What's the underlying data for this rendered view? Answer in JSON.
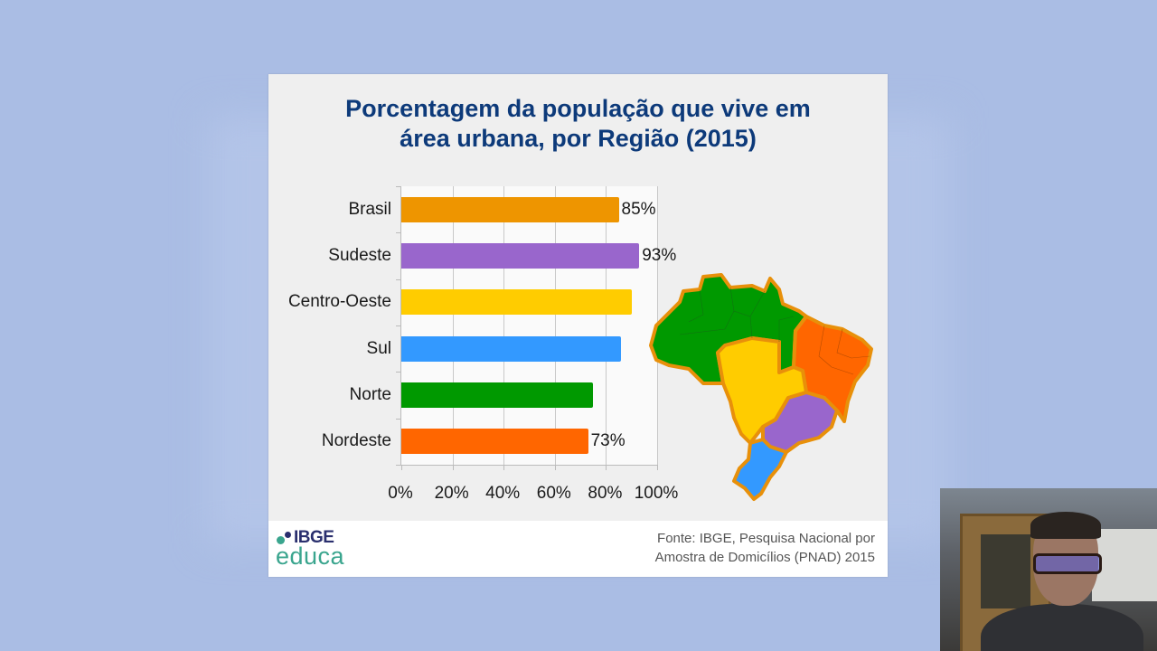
{
  "slide": {
    "title_line1": "Porcentagem da população que vive em",
    "title_line2": "área urbana, por Região (2015)",
    "source_line1": "Fonte: IBGE, Pesquisa Nacional por",
    "source_line2": "Amostra de Domicílios (PNAD) 2015",
    "logo_top": "IBGE",
    "logo_bottom": "educa"
  },
  "chart_data": {
    "type": "bar",
    "orientation": "horizontal",
    "title": "Porcentagem da população que vive em área urbana, por Região (2015)",
    "categories": [
      "Brasil",
      "Sudeste",
      "Centro-Oeste",
      "Sul",
      "Norte",
      "Nordeste"
    ],
    "values": [
      85,
      93,
      90,
      86,
      75,
      73
    ],
    "value_labels": [
      "85%",
      "93%",
      "",
      "",
      "",
      "73%"
    ],
    "colors": [
      "#ee9500",
      "#9966cc",
      "#ffcc00",
      "#3399ff",
      "#009900",
      "#ff6600"
    ],
    "xlabel": "",
    "ylabel": "",
    "xlim": [
      0,
      100
    ],
    "xticks": [
      "0%",
      "20%",
      "40%",
      "60%",
      "80%",
      "100%"
    ],
    "grid": true,
    "legend": "none",
    "annotation": "Mapa do Brasil colorido por região"
  },
  "map": {
    "regions": [
      {
        "name": "Norte",
        "color": "#009900"
      },
      {
        "name": "Nordeste",
        "color": "#ff6600"
      },
      {
        "name": "Centro-Oeste",
        "color": "#ffcc00"
      },
      {
        "name": "Sudeste",
        "color": "#9966cc"
      },
      {
        "name": "Sul",
        "color": "#3399ff"
      }
    ],
    "outline_color": "#e8900a"
  }
}
